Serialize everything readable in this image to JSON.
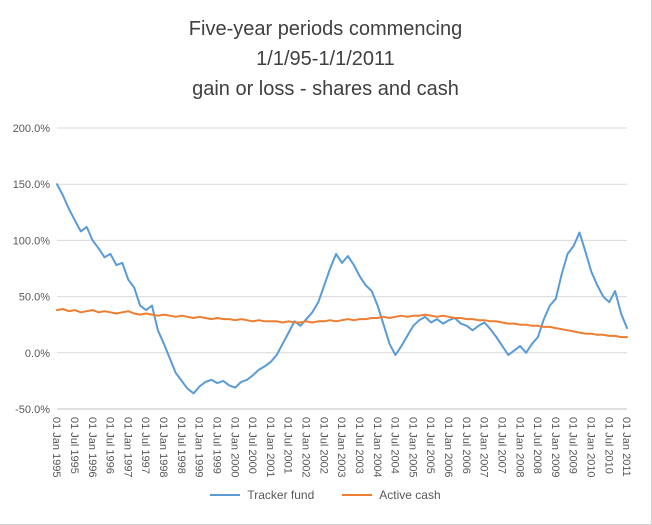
{
  "title": {
    "line1": "Five-year periods commencing",
    "line2": "1/1/95-1/1/2011",
    "line3": "gain or loss - shares and cash"
  },
  "chart_data": {
    "type": "line",
    "title": "Five-year periods commencing 1/1/95-1/1/2011 gain or loss - shares and cash",
    "grid": "horizontal",
    "legend_position": "bottom",
    "y_axis": {
      "min": -50,
      "max": 200,
      "step": 50,
      "unit": "percent",
      "tick_labels": [
        "200.0%",
        "150.0%",
        "100.0%",
        "50.0%",
        "0.0%",
        "-50.0%"
      ]
    },
    "x_tick_labels": [
      "01 Jan 1995",
      "01 Jul 1995",
      "01 Jan 1996",
      "01 Jul 1996",
      "01 Jan 1997",
      "01 Jul 1997",
      "01 Jan 1998",
      "01 Jul 1998",
      "01 Jan 1999",
      "01 Jul 1999",
      "01 Jan 2000",
      "01 Jul 2000",
      "01 Jan 2001",
      "01 Jul 2001",
      "01 Jan 2002",
      "01 Jul 2002",
      "01 Jan 2003",
      "01 Jul 2003",
      "01 Jan 2004",
      "01 Jul 2004",
      "01 Jan 2005",
      "01 Jul 2005",
      "01 Jan 2006",
      "01 Jul 2006",
      "01 Jan 2007",
      "01 Jul 2007",
      "01 Jan 2008",
      "01 Jul 2008",
      "01 Jan 2009",
      "01 Jul 2009",
      "01 Jan 2010",
      "01 Jul 2010",
      "01 Jan 2011"
    ],
    "points_per_tick": 3,
    "series": [
      {
        "name": "Tracker fund",
        "color": "#5B9BD5",
        "values": [
          150,
          140,
          128,
          118,
          108,
          112,
          100,
          93,
          85,
          88,
          78,
          80,
          65,
          58,
          42,
          38,
          42,
          20,
          8,
          -5,
          -18,
          -25,
          -32,
          -36,
          -30,
          -26,
          -24,
          -27,
          -25,
          -29,
          -31,
          -26,
          -24,
          -20,
          -15,
          -12,
          -8,
          -2,
          8,
          18,
          28,
          24,
          30,
          36,
          45,
          60,
          75,
          88,
          80,
          86,
          78,
          68,
          60,
          55,
          42,
          25,
          8,
          -2,
          6,
          15,
          24,
          29,
          32,
          27,
          30,
          26,
          29,
          31,
          26,
          24,
          20,
          24,
          27,
          21,
          14,
          6,
          -2,
          2,
          6,
          0,
          8,
          14,
          30,
          42,
          48,
          70,
          88,
          95,
          107,
          90,
          72,
          60,
          50,
          45,
          55,
          35,
          22
        ]
      },
      {
        "name": "Active cash",
        "color": "#ED7D31",
        "values": [
          38,
          39,
          37,
          38,
          36,
          37,
          38,
          36,
          37,
          36,
          35,
          36,
          37,
          35,
          34,
          35,
          34,
          33,
          34,
          33,
          32,
          33,
          32,
          31,
          32,
          31,
          30,
          31,
          30,
          30,
          29,
          30,
          29,
          28,
          29,
          28,
          28,
          28,
          27,
          28,
          27,
          27,
          28,
          27,
          28,
          28,
          29,
          28,
          29,
          30,
          29,
          30,
          30,
          31,
          31,
          32,
          31,
          32,
          33,
          32,
          33,
          33,
          34,
          33,
          32,
          33,
          32,
          31,
          31,
          30,
          30,
          29,
          29,
          28,
          28,
          27,
          26,
          26,
          25,
          25,
          24,
          24,
          23,
          23,
          22,
          21,
          20,
          19,
          18,
          17,
          17,
          16,
          16,
          15,
          15,
          14,
          14
        ]
      }
    ]
  }
}
